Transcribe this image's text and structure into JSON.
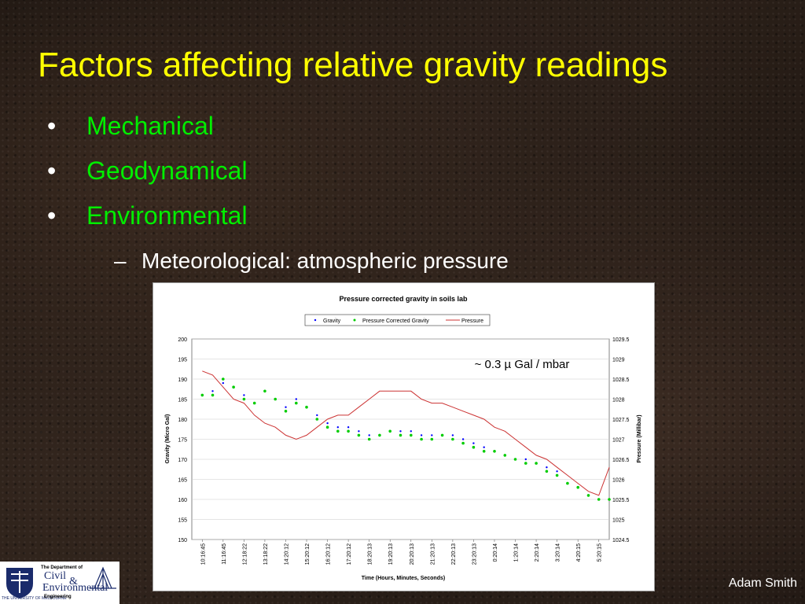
{
  "slide": {
    "title": "Factors affecting relative gravity readings",
    "bullets": [
      "Mechanical",
      "Geodynamical",
      "Environmental"
    ],
    "sub_bullet": "Meteorological: atmospheric pressure",
    "bullet_symbol": "•",
    "dash_symbol": "–",
    "author": "Adam Smith",
    "title_color": "#ffff00",
    "bullet_color": "#00ee00"
  },
  "logo": {
    "university": "THE UNIVERSITY OF MELBOURNE",
    "department_line": "The Department of",
    "civil": "Civil",
    "ampersand": "&",
    "environmental": "Environmental",
    "engineering": "Engineering"
  },
  "chart_data": {
    "type": "line",
    "title": "Pressure corrected gravity in soils lab",
    "xlabel": "Time (Hours, Minutes, Seconds)",
    "ylabel": "Gravity (Micro Gal)",
    "y2label": "Pressure (Millibar)",
    "annotation": "~ 0.3 µ Gal / mbar",
    "ylim": [
      150,
      200
    ],
    "y2lim": [
      1024.5,
      1029.5
    ],
    "yticks": [
      150,
      155,
      160,
      165,
      170,
      175,
      180,
      185,
      190,
      195,
      200
    ],
    "y2ticks": [
      "1024.5",
      "1025",
      "1025.5",
      "1026",
      "1026.5",
      "1027",
      "1027.5",
      "1028",
      "1028.5",
      "1029",
      "1029.5"
    ],
    "x_categories": [
      "10:16:45",
      "11:16:45",
      "12:18:22",
      "13:18:22",
      "14:20:12",
      "15:20:12",
      "16:20:12",
      "17:20:12",
      "18:20:13",
      "19:20:13",
      "20:20:13",
      "21:20:13",
      "22:20:13",
      "23:20:13",
      "0:20:14",
      "1:20:14",
      "2:20:14",
      "3:20:14",
      "4:20:15",
      "5:20:15"
    ],
    "legend": [
      "Gravity",
      "Pressure Corrected Gravity",
      "Pressure"
    ],
    "legend_position": "top",
    "grid": true,
    "colors": {
      "gravity": "#0000ff",
      "corrected": "#00cc00",
      "pressure": "#cc3333"
    },
    "series": [
      {
        "name": "Gravity",
        "axis": "left",
        "x": [
          0,
          0.5,
          1,
          1.5,
          2,
          2.5,
          3,
          3.5,
          4,
          4.5,
          5,
          5.5,
          6,
          6.5,
          7,
          7.5,
          8,
          8.5,
          9,
          9.5,
          10,
          10.5,
          11,
          11.5,
          12,
          12.5,
          13,
          13.5,
          14,
          14.5,
          15,
          15.5,
          16,
          16.5,
          17,
          17.5,
          18,
          18.5,
          19,
          19.5
        ],
        "y": [
          186,
          187,
          189,
          188,
          186,
          184,
          187,
          185,
          183,
          185,
          183,
          181,
          179,
          178,
          178,
          177,
          176,
          176,
          177,
          177,
          177,
          176,
          176,
          176,
          176,
          175,
          174,
          173,
          172,
          171,
          170,
          170,
          169,
          168,
          167,
          164,
          163,
          161,
          160,
          160
        ]
      },
      {
        "name": "Pressure Corrected Gravity",
        "axis": "left",
        "x": [
          0,
          0.5,
          1,
          1.5,
          2,
          2.5,
          3,
          3.5,
          4,
          4.5,
          5,
          5.5,
          6,
          6.5,
          7,
          7.5,
          8,
          8.5,
          9,
          9.5,
          10,
          10.5,
          11,
          11.5,
          12,
          12.5,
          13,
          13.5,
          14,
          14.5,
          15,
          15.5,
          16,
          16.5,
          17,
          17.5,
          18,
          18.5,
          19,
          19.5
        ],
        "y": [
          186,
          186,
          190,
          188,
          185,
          184,
          187,
          185,
          182,
          184,
          183,
          180,
          178,
          177,
          177,
          176,
          175,
          176,
          177,
          176,
          176,
          175,
          175,
          176,
          175,
          174,
          173,
          172,
          172,
          171,
          170,
          169,
          169,
          167,
          166,
          164,
          163,
          161,
          160,
          160
        ]
      },
      {
        "name": "Pressure",
        "axis": "right",
        "x": [
          0,
          0.5,
          1,
          1.5,
          2,
          2.5,
          3,
          3.5,
          4,
          4.5,
          5,
          5.5,
          6,
          6.5,
          7,
          7.5,
          8,
          8.5,
          9,
          9.5,
          10,
          10.5,
          11,
          11.5,
          12,
          12.5,
          13,
          13.5,
          14,
          14.5,
          15,
          15.5,
          16,
          16.5,
          17,
          17.5,
          18,
          18.5,
          19,
          19.5
        ],
        "y": [
          1028.7,
          1028.6,
          1028.3,
          1028.0,
          1027.9,
          1027.6,
          1027.4,
          1027.3,
          1027.1,
          1027.0,
          1027.1,
          1027.3,
          1027.5,
          1027.6,
          1027.6,
          1027.8,
          1028.0,
          1028.2,
          1028.2,
          1028.2,
          1028.2,
          1028.0,
          1027.9,
          1027.9,
          1027.8,
          1027.7,
          1027.6,
          1027.5,
          1027.3,
          1027.2,
          1027.0,
          1026.8,
          1026.6,
          1026.5,
          1026.3,
          1026.1,
          1025.9,
          1025.7,
          1025.6,
          1026.3
        ]
      }
    ]
  }
}
